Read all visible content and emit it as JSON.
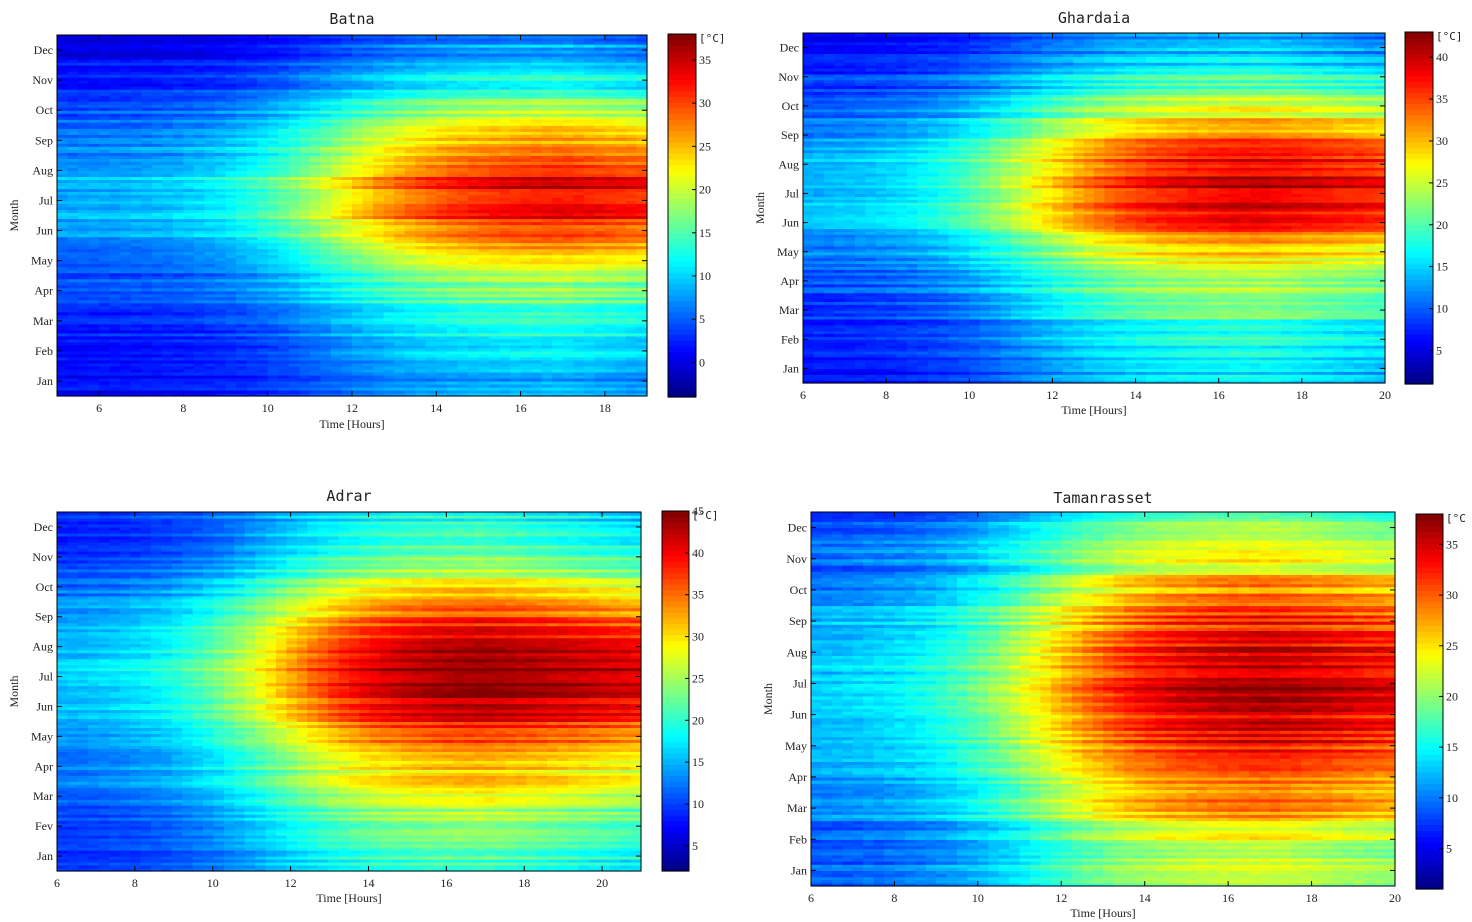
{
  "chart_data": [
    {
      "type": "heatmap",
      "title": "Batna",
      "xlabel": "Time [Hours]",
      "ylabel": "Month",
      "x_range": [
        5,
        19
      ],
      "x_ticks": [
        6,
        8,
        10,
        12,
        14,
        16,
        18
      ],
      "y_ticks_bottom_to_top": [
        "Jan",
        "Feb",
        "Mar",
        "Apr",
        "May",
        "Jun",
        "Jul",
        "Aug",
        "Sep",
        "Oct",
        "Nov",
        "Dec"
      ],
      "colorbar": {
        "unit": "[°C]",
        "range": [
          -4,
          38
        ],
        "ticks": [
          0,
          5,
          10,
          15,
          20,
          25,
          30,
          35
        ]
      },
      "colormap": "jet",
      "monthly_afternoon_peak_c": [
        9,
        10,
        14,
        17,
        22,
        31,
        36,
        33,
        27,
        20,
        12,
        8
      ],
      "morning_minimum_c": -2
    },
    {
      "type": "heatmap",
      "title": "Ghardaia",
      "xlabel": "Time [Hours]",
      "ylabel": "Month",
      "x_range": [
        6,
        20
      ],
      "x_ticks": [
        6,
        8,
        10,
        12,
        14,
        16,
        18,
        20
      ],
      "y_ticks_bottom_to_top": [
        "Jan",
        "Feb",
        "Mar",
        "Apr",
        "May",
        "Jun",
        "Jul",
        "Aug",
        "Sep",
        "Oct",
        "Nov",
        "Dec"
      ],
      "colorbar": {
        "unit": "[°C]",
        "range": [
          1,
          43
        ],
        "ticks": [
          5,
          10,
          15,
          20,
          25,
          30,
          35,
          40
        ]
      },
      "colormap": "jet",
      "monthly_afternoon_peak_c": [
        15,
        17,
        22,
        24,
        30,
        38,
        41,
        40,
        34,
        26,
        19,
        14
      ],
      "morning_minimum_c": 3
    },
    {
      "type": "heatmap",
      "title": "Adrar",
      "xlabel": "Time [Hours]",
      "ylabel": "Month",
      "x_range": [
        6,
        21
      ],
      "x_ticks": [
        6,
        8,
        10,
        12,
        14,
        16,
        18,
        20
      ],
      "y_ticks_bottom_to_top": [
        "Jan",
        "Fev",
        "Mar",
        "Apr",
        "May",
        "Jun",
        "Jul",
        "Aug",
        "Sep",
        "Oct",
        "Nov",
        "Dec"
      ],
      "colorbar": {
        "unit": "[°C]",
        "range": [
          2,
          45
        ],
        "ticks": [
          5,
          10,
          15,
          20,
          25,
          30,
          35,
          40,
          45
        ]
      },
      "colormap": "jet",
      "monthly_afternoon_peak_c": [
        21,
        24,
        29,
        32,
        37,
        44,
        46,
        44,
        39,
        30,
        23,
        19
      ],
      "morning_minimum_c": 4
    },
    {
      "type": "heatmap",
      "title": "Tamanrasset",
      "xlabel": "Time [Hours]",
      "ylabel": "Month",
      "x_range": [
        6,
        20
      ],
      "x_ticks": [
        6,
        8,
        10,
        12,
        14,
        16,
        18,
        20
      ],
      "y_ticks_bottom_to_top": [
        "Jan",
        "Feb",
        "Mar",
        "Apr",
        "May",
        "Jun",
        "Jul",
        "Aug",
        "Sep",
        "Oct",
        "Nov",
        "Dec"
      ],
      "colorbar": {
        "unit": "[°C",
        "range": [
          1,
          38
        ],
        "ticks": [
          5,
          10,
          15,
          20,
          25,
          30,
          35
        ]
      },
      "colormap": "jet",
      "monthly_afternoon_peak_c": [
        21,
        24,
        29,
        31,
        34,
        36,
        37,
        36,
        33,
        29,
        24,
        20
      ],
      "morning_minimum_c": 3
    }
  ]
}
